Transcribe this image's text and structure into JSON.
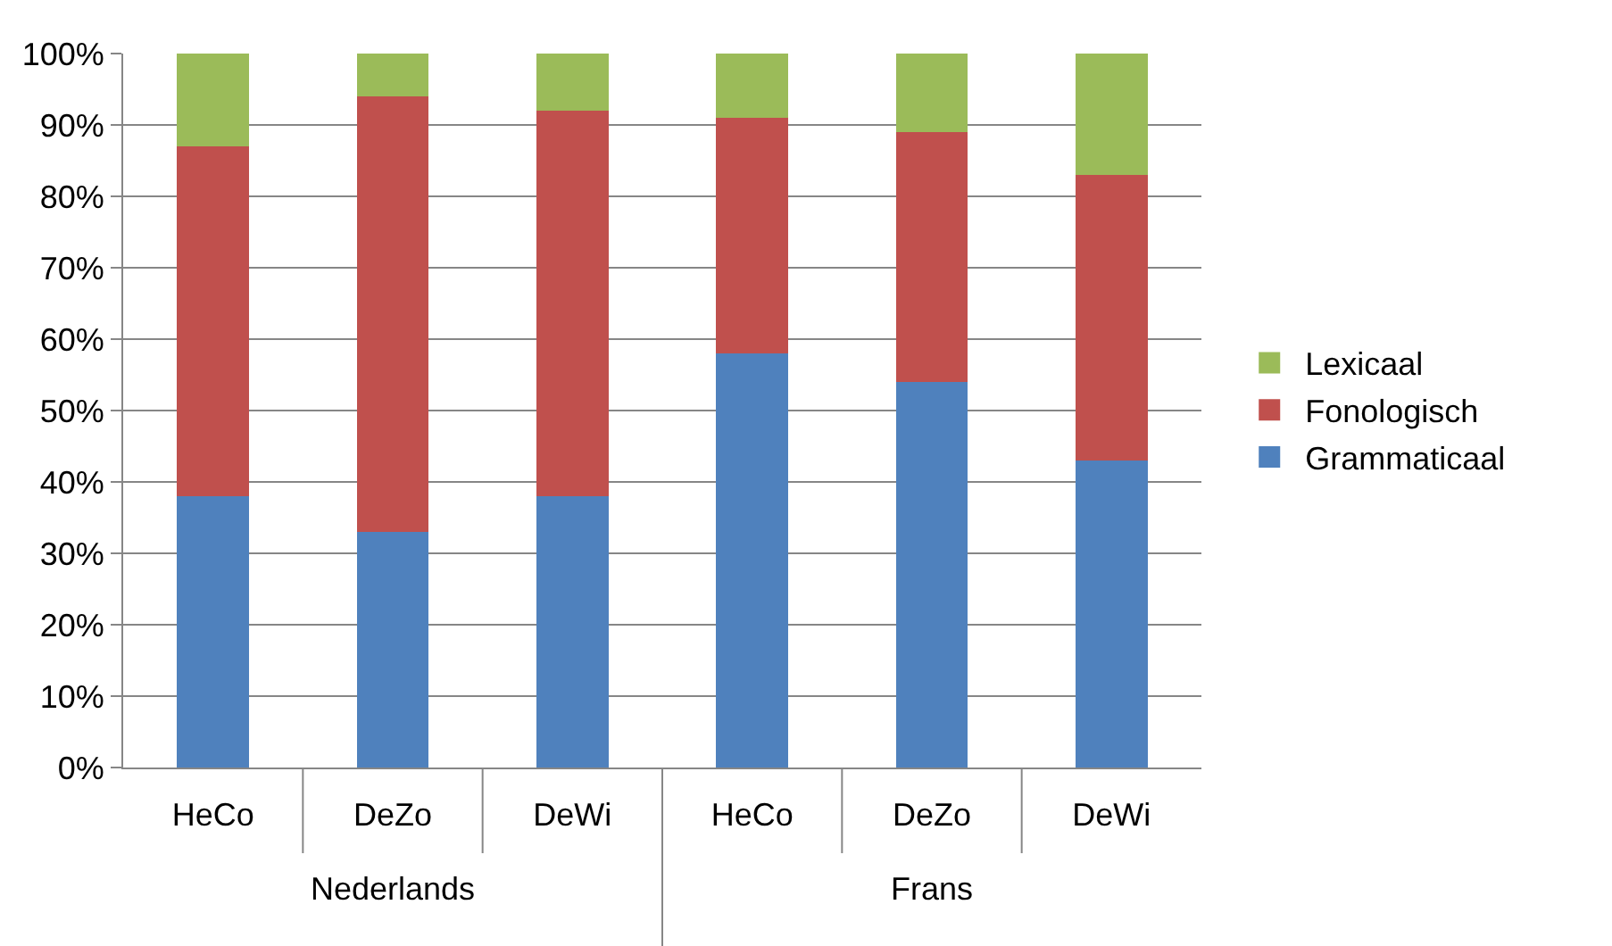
{
  "chart_data": {
    "type": "bar",
    "stacked": true,
    "categories": [
      "HeCo",
      "DeZo",
      "DeWi",
      "HeCo",
      "DeZo",
      "DeWi"
    ],
    "series": [
      {
        "name": "Grammaticaal",
        "color": "#4f81bd",
        "values": [
          38,
          33,
          38,
          58,
          54,
          43
        ]
      },
      {
        "name": "Fonologisch",
        "color": "#c0504d",
        "values": [
          49,
          61,
          54,
          33,
          35,
          40
        ]
      },
      {
        "name": "Lexicaal",
        "color": "#9bbb59",
        "values": [
          13,
          6,
          8,
          9,
          11,
          17
        ]
      }
    ],
    "ylim": [
      0,
      100
    ],
    "yticks": [
      {
        "value": 0,
        "label": "0%"
      },
      {
        "value": 10,
        "label": "10%"
      },
      {
        "value": 20,
        "label": "20%"
      },
      {
        "value": 30,
        "label": "30%"
      },
      {
        "value": 40,
        "label": "40%"
      },
      {
        "value": 50,
        "label": "50%"
      },
      {
        "value": 60,
        "label": "60%"
      },
      {
        "value": 70,
        "label": "70%"
      },
      {
        "value": 80,
        "label": "80%"
      },
      {
        "value": 90,
        "label": "90%"
      },
      {
        "value": 100,
        "label": "100%"
      }
    ],
    "grid": "y",
    "legend": "right",
    "annotations": [
      "Nederlands",
      "Frans"
    ]
  }
}
